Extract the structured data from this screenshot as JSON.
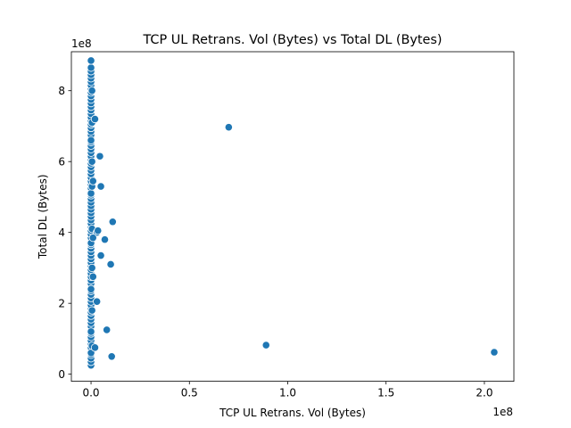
{
  "chart_data": {
    "type": "scatter",
    "title": "TCP UL Retrans. Vol (Bytes) vs Total DL (Bytes)",
    "xlabel": "TCP UL Retrans. Vol (Bytes)",
    "ylabel": "Total DL (Bytes)",
    "x_offset_text": "1e8",
    "y_offset_text": "1e8",
    "xlim": [
      -0.1,
      2.15
    ],
    "ylim": [
      -0.2,
      9.1
    ],
    "x_ticks": [
      0.0,
      0.5,
      1.0,
      1.5,
      2.0
    ],
    "x_tick_labels": [
      "0.0",
      "0.5",
      "1.0",
      "1.5",
      "2.0"
    ],
    "y_ticks": [
      0,
      2,
      4,
      6,
      8
    ],
    "y_tick_labels": [
      "0",
      "2",
      "4",
      "6",
      "8"
    ],
    "grid": false,
    "marker_color": "#1f77b4",
    "x": [
      0,
      0,
      0,
      0,
      0,
      0,
      0,
      0,
      0,
      0,
      0,
      0,
      0,
      0,
      0,
      0,
      0,
      0,
      0,
      0,
      0,
      0,
      0,
      0,
      0,
      0,
      0,
      0,
      0,
      0,
      0,
      0,
      0,
      0,
      0,
      0,
      0,
      0,
      0,
      0,
      0,
      0,
      0,
      0,
      0,
      0,
      0,
      0,
      0,
      0,
      0,
      0,
      0,
      0,
      0,
      0,
      0,
      0,
      0,
      0,
      0,
      0,
      0,
      0,
      0,
      0,
      0,
      0,
      0,
      0,
      0,
      0,
      0,
      0,
      0,
      0,
      0,
      0,
      0,
      0,
      0,
      0,
      0,
      0,
      0,
      0,
      0,
      0,
      0,
      0,
      0,
      0,
      0.005,
      0.005,
      0.005,
      0.005,
      0.005,
      0.005,
      0.005,
      0.005,
      0.02,
      0.03,
      0.01,
      0.01,
      0.02,
      0.01,
      0.045,
      0.05,
      0.07,
      0.11,
      0.05,
      0.03,
      0.1,
      0.08,
      0.035,
      0.105,
      0.7,
      0.89,
      2.05
    ],
    "y": [
      0.25,
      0.35,
      0.45,
      0.55,
      0.65,
      0.75,
      0.85,
      0.95,
      1.05,
      1.15,
      1.25,
      1.35,
      1.45,
      1.55,
      1.65,
      1.75,
      1.85,
      1.95,
      2.05,
      2.15,
      2.25,
      2.35,
      2.45,
      2.55,
      2.65,
      2.75,
      2.85,
      2.95,
      3.05,
      3.15,
      3.25,
      3.35,
      3.45,
      3.55,
      3.65,
      3.75,
      3.85,
      3.95,
      4.05,
      4.15,
      4.25,
      4.35,
      4.45,
      4.55,
      4.65,
      4.75,
      4.85,
      4.95,
      5.05,
      5.15,
      5.25,
      5.35,
      5.45,
      5.55,
      5.65,
      5.75,
      5.85,
      5.95,
      6.05,
      6.15,
      6.25,
      6.35,
      6.45,
      6.55,
      6.65,
      6.75,
      6.85,
      6.95,
      7.05,
      7.15,
      7.25,
      7.35,
      7.45,
      7.55,
      7.65,
      7.75,
      7.85,
      7.95,
      8.05,
      8.15,
      8.25,
      8.35,
      8.45,
      8.55,
      8.65,
      8.85,
      0.6,
      1.2,
      2.4,
      3.7,
      5.1,
      6.6,
      0.8,
      1.8,
      3.0,
      4.1,
      5.3,
      6.0,
      7.1,
      8.0,
      7.2,
      4.0,
      5.45,
      2.75,
      0.75,
      3.85,
      6.15,
      5.3,
      3.8,
      4.3,
      3.35,
      2.05,
      3.1,
      1.25,
      4.05,
      0.5,
      6.97,
      0.82,
      0.62
    ]
  }
}
